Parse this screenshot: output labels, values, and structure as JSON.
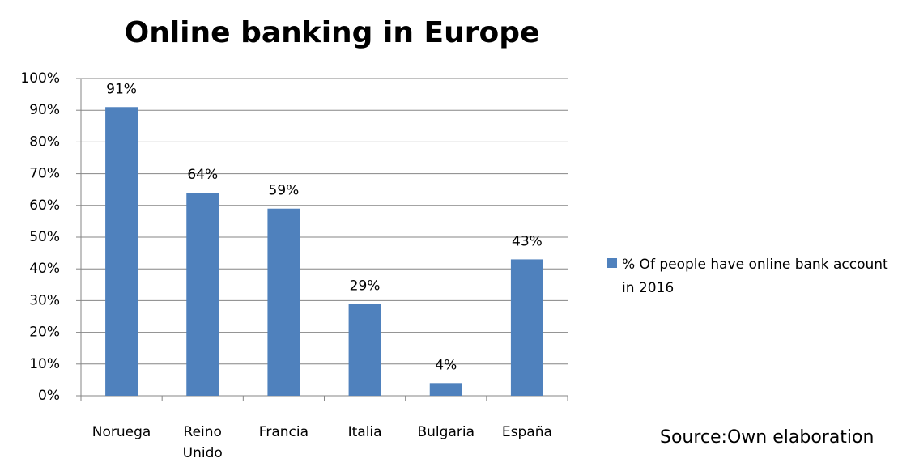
{
  "chart_data": {
    "type": "bar",
    "title": "Online banking in Europe",
    "categories": [
      "Noruega",
      "Reino Unido",
      "Francia",
      "Italia",
      "Bulgaria",
      "España"
    ],
    "series": [
      {
        "name": "% Of people have online bank account in 2016",
        "color": "#4f81bd",
        "values": [
          91,
          64,
          59,
          29,
          4,
          43
        ],
        "value_labels": [
          "91%",
          "64%",
          "59%",
          "29%",
          "4%",
          "43%"
        ]
      }
    ],
    "ylim": [
      0,
      100
    ],
    "yticks": [
      {
        "value": 0,
        "label": "0%"
      },
      {
        "value": 10,
        "label": "10%"
      },
      {
        "value": 20,
        "label": "20%"
      },
      {
        "value": 30,
        "label": "30%"
      },
      {
        "value": 40,
        "label": "40%"
      },
      {
        "value": 50,
        "label": "50%"
      },
      {
        "value": 60,
        "label": "60%"
      },
      {
        "value": 70,
        "label": "70%"
      },
      {
        "value": 80,
        "label": "80%"
      },
      {
        "value": 90,
        "label": "90%"
      },
      {
        "value": 100,
        "label": "100%"
      }
    ],
    "grid": true,
    "legend": "right",
    "source": "Source:Own elaboration"
  }
}
